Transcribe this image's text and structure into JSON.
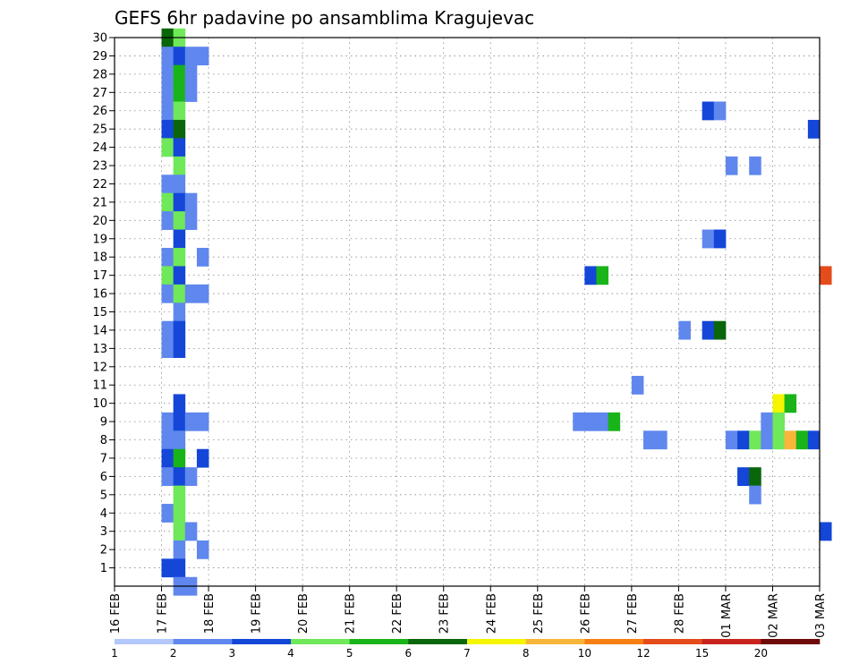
{
  "chart_data": {
    "type": "heatmap",
    "title": "GEFS 6hr padavine po ansamblima Kragujevac",
    "xlabel": "",
    "ylabel": "",
    "x_ticks": [
      "16 FEB",
      "17 FEB",
      "18 FEB",
      "19 FEB",
      "20 FEB",
      "21 FEB",
      "22 FEB",
      "23 FEB",
      "24 FEB",
      "25 FEB",
      "26 FEB",
      "27 FEB",
      "28 FEB",
      "01 MAR",
      "02 MAR",
      "03 MAR"
    ],
    "y_ticks": [
      1,
      2,
      3,
      4,
      5,
      6,
      7,
      8,
      9,
      10,
      11,
      12,
      13,
      14,
      15,
      16,
      17,
      18,
      19,
      20,
      21,
      22,
      23,
      24,
      25,
      26,
      27,
      28,
      29,
      30
    ],
    "ylim": [
      0,
      30
    ],
    "grid": true,
    "colorbar": {
      "labels": [
        "1",
        "2",
        "3",
        "4",
        "5",
        "6",
        "7",
        "8",
        "10",
        "12",
        "15",
        "20"
      ],
      "colors": [
        "#b4c7fa",
        "#5f87ee",
        "#1446d8",
        "#6fe85a",
        "#19b419",
        "#0a660a",
        "#f5f500",
        "#f9b53a",
        "#f77f12",
        "#e44c1c",
        "#c8241e",
        "#6e0a0a"
      ]
    },
    "points": [
      [
        30,
        "17 00",
        5
      ],
      [
        30,
        "17 06",
        3
      ],
      [
        29,
        "17 00",
        1
      ],
      [
        29,
        "17 06",
        2
      ],
      [
        29,
        "17 12",
        1
      ],
      [
        29,
        "17 18",
        1
      ],
      [
        28,
        "17 00",
        1
      ],
      [
        28,
        "17 06",
        4
      ],
      [
        28,
        "17 12",
        1
      ],
      [
        27,
        "17 00",
        1
      ],
      [
        27,
        "17 06",
        4
      ],
      [
        27,
        "17 12",
        1
      ],
      [
        26,
        "17 00",
        1
      ],
      [
        26,
        "17 06",
        3
      ],
      [
        26,
        "28 12",
        2
      ],
      [
        26,
        "28 18",
        1
      ],
      [
        25,
        "17 00",
        2
      ],
      [
        25,
        "17 06",
        5
      ],
      [
        25,
        "02 18",
        2
      ],
      [
        24,
        "17 00",
        3
      ],
      [
        24,
        "17 06",
        2
      ],
      [
        23,
        "17 06",
        3
      ],
      [
        23,
        "01 00",
        1
      ],
      [
        23,
        "01 12",
        1
      ],
      [
        22,
        "17 00",
        1
      ],
      [
        22,
        "17 06",
        1
      ],
      [
        21,
        "17 00",
        3
      ],
      [
        21,
        "17 06",
        2
      ],
      [
        21,
        "17 12",
        1
      ],
      [
        20,
        "17 00",
        1
      ],
      [
        20,
        "17 06",
        3
      ],
      [
        20,
        "17 12",
        1
      ],
      [
        19,
        "17 06",
        2
      ],
      [
        19,
        "28 12",
        1
      ],
      [
        19,
        "28 18",
        2
      ],
      [
        18,
        "17 00",
        1
      ],
      [
        18,
        "17 06",
        3
      ],
      [
        18,
        "17 18",
        1
      ],
      [
        17,
        "17 00",
        3
      ],
      [
        17,
        "17 06",
        2
      ],
      [
        17,
        "26 00",
        2
      ],
      [
        17,
        "26 06",
        4
      ],
      [
        17,
        "03 00",
        9
      ],
      [
        16,
        "17 00",
        1
      ],
      [
        16,
        "17 06",
        3
      ],
      [
        16,
        "17 12",
        1
      ],
      [
        16,
        "17 18",
        1
      ],
      [
        15,
        "17 06",
        1
      ],
      [
        14,
        "17 00",
        1
      ],
      [
        14,
        "17 06",
        2
      ],
      [
        14,
        "28 00",
        1
      ],
      [
        14,
        "28 12",
        2
      ],
      [
        14,
        "28 18",
        5
      ],
      [
        13,
        "17 00",
        1
      ],
      [
        13,
        "17 06",
        2
      ],
      [
        11,
        "27 00",
        1
      ],
      [
        10,
        "17 06",
        2
      ],
      [
        10,
        "02 00",
        6
      ],
      [
        10,
        "02 06",
        4
      ],
      [
        9,
        "17 00",
        1
      ],
      [
        9,
        "17 06",
        2
      ],
      [
        9,
        "17 12",
        1
      ],
      [
        9,
        "17 18",
        1
      ],
      [
        9,
        "25 18",
        1
      ],
      [
        9,
        "26 00",
        1
      ],
      [
        9,
        "26 06",
        1
      ],
      [
        9,
        "26 12",
        4
      ],
      [
        9,
        "01 18",
        1
      ],
      [
        9,
        "02 00",
        3
      ],
      [
        8,
        "17 00",
        1
      ],
      [
        8,
        "17 06",
        1
      ],
      [
        8,
        "27 06",
        1
      ],
      [
        8,
        "27 12",
        1
      ],
      [
        8,
        "01 00",
        1
      ],
      [
        8,
        "01 06",
        2
      ],
      [
        8,
        "01 12",
        3
      ],
      [
        8,
        "01 18",
        1
      ],
      [
        8,
        "02 00",
        3
      ],
      [
        8,
        "02 06",
        7
      ],
      [
        8,
        "02 12",
        4
      ],
      [
        8,
        "02 18",
        2
      ],
      [
        7,
        "17 00",
        2
      ],
      [
        7,
        "17 06",
        4
      ],
      [
        7,
        "17 18",
        2
      ],
      [
        6,
        "17 00",
        1
      ],
      [
        6,
        "17 06",
        2
      ],
      [
        6,
        "17 12",
        1
      ],
      [
        6,
        "01 06",
        2
      ],
      [
        6,
        "01 12",
        5
      ],
      [
        5,
        "17 06",
        3
      ],
      [
        5,
        "01 12",
        1
      ],
      [
        4,
        "17 00",
        1
      ],
      [
        4,
        "17 06",
        3
      ],
      [
        3,
        "17 06",
        3
      ],
      [
        3,
        "17 12",
        1
      ],
      [
        3,
        "03 00",
        2
      ],
      [
        2,
        "17 06",
        1
      ],
      [
        2,
        "17 18",
        1
      ],
      [
        1,
        "17 00",
        2
      ],
      [
        1,
        "17 06",
        2
      ],
      [
        0,
        "17 06",
        1
      ],
      [
        0,
        "17 12",
        1
      ]
    ]
  }
}
